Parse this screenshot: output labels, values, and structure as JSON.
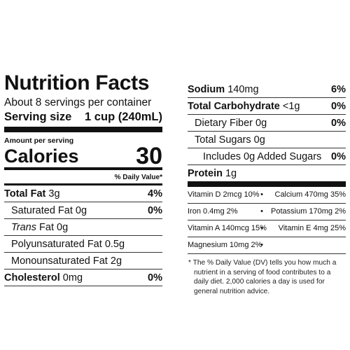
{
  "label": {
    "title": "Nutrition Facts",
    "servings_per_container": "About 8 servings per container",
    "serving_size_label": "Serving size",
    "serving_size_value": "1 cup (240mL)",
    "amount_per_serving": "Amount per serving",
    "calories_label": "Calories",
    "calories_value": "30",
    "daily_value_header": "% Daily Value*"
  },
  "left_nutrients": [
    {
      "name": "Total Fat",
      "amount": "3g",
      "dv": "4%"
    },
    {
      "name": "Saturated Fat",
      "amount": "0g",
      "dv": "0%"
    },
    {
      "name": "Trans",
      "amount": "Fat 0g",
      "dv": ""
    },
    {
      "name": "Polyunsaturated Fat",
      "amount": "0.5g",
      "dv": ""
    },
    {
      "name": "Monounsaturated Fat",
      "amount": "2g",
      "dv": ""
    },
    {
      "name": "Cholesterol",
      "amount": "0mg",
      "dv": "0%"
    }
  ],
  "right_nutrients": [
    {
      "name": "Sodium",
      "amount": "140mg",
      "dv": "6%"
    },
    {
      "name": "Total Carbohydrate",
      "amount": "<1g",
      "dv": "0%"
    },
    {
      "name": "Dietary Fiber",
      "amount": "0g",
      "dv": "0%"
    },
    {
      "name": "Total Sugars",
      "amount": "0g",
      "dv": ""
    },
    {
      "name": "Includes",
      "amount": "0g Added Sugars",
      "dv": "0%"
    },
    {
      "name": "Protein",
      "amount": "1g",
      "dv": ""
    }
  ],
  "vitamins": [
    {
      "left": "Vitamin D 2mcg 10%",
      "right": "Calcium 470mg 35%"
    },
    {
      "left": "Iron 0.4mg 2%",
      "right": "Potassium 170mg 2%"
    },
    {
      "left": "Vitamin A 140mcg 15%",
      "right": "Vitamin E 4mg 25%"
    },
    {
      "left": "Magnesium 10mg 2%",
      "right": ""
    }
  ],
  "bullet": "•",
  "footnote": "* The % Daily Value (DV) tells you how much a nutrient in a serving of food contributes to a daily diet. 2,000 calories a day is used for general nutrition advice."
}
